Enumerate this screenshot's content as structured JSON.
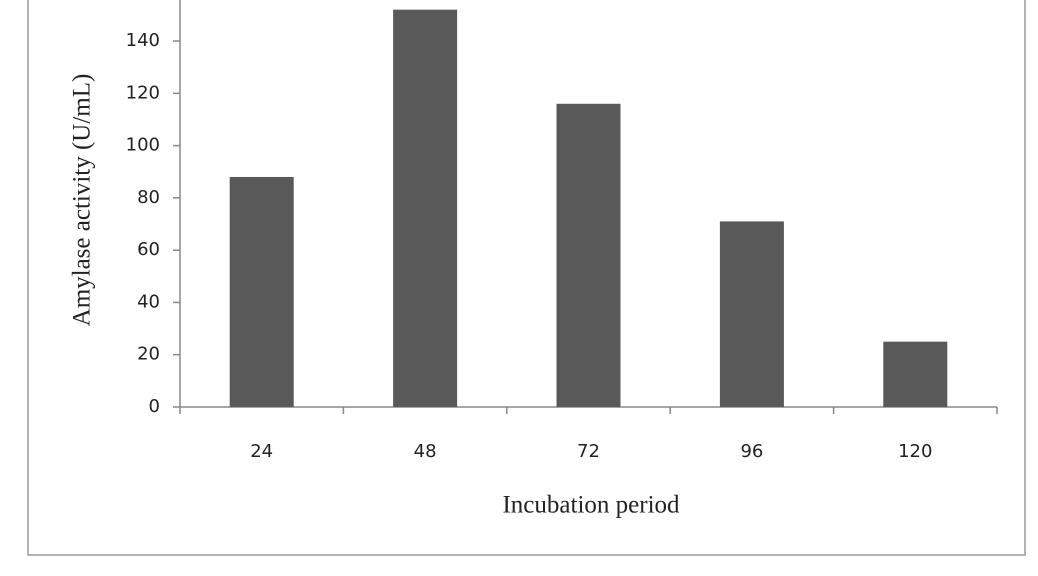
{
  "chart_data": {
    "type": "bar",
    "x_label": "Incubation period",
    "y_label": "Amylase activity (U/mL)",
    "categories": [
      "24",
      "48",
      "72",
      "96",
      "120"
    ],
    "values": [
      88,
      152,
      116,
      71,
      25
    ],
    "color": "#595959",
    "ylim": [
      0,
      160
    ],
    "yticks": [
      0,
      20,
      40,
      60,
      80,
      100,
      120,
      140
    ]
  }
}
